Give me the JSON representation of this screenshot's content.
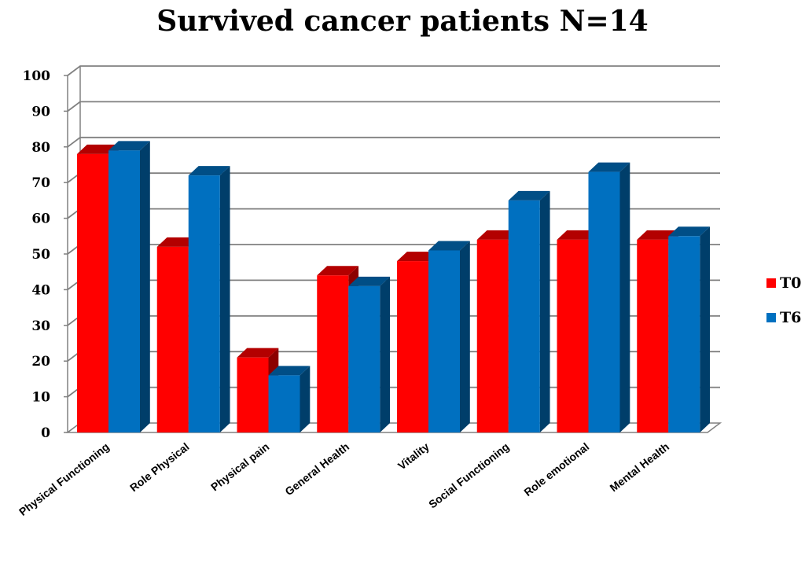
{
  "chart_data": {
    "type": "bar",
    "title": "Survived cancer patients N=14",
    "xlabel": "",
    "ylabel": "",
    "ylim": [
      0,
      100
    ],
    "yticks": [
      0,
      10,
      20,
      30,
      40,
      50,
      60,
      70,
      80,
      90,
      100
    ],
    "grid": true,
    "legend_position": "right",
    "categories": [
      "Physical Functioning",
      "Role Physical",
      "Physical pain",
      "General Health",
      "Vitality",
      "Social Functioning",
      "Role  emotional",
      "Mental Health"
    ],
    "series": [
      {
        "name": "T0",
        "color": "#ff0000",
        "values": [
          78,
          52,
          21,
          44,
          48,
          54,
          54,
          54
        ]
      },
      {
        "name": "T6",
        "color": "#0070c0",
        "values": [
          79,
          72,
          16,
          41,
          51,
          65,
          73,
          55
        ]
      }
    ]
  }
}
